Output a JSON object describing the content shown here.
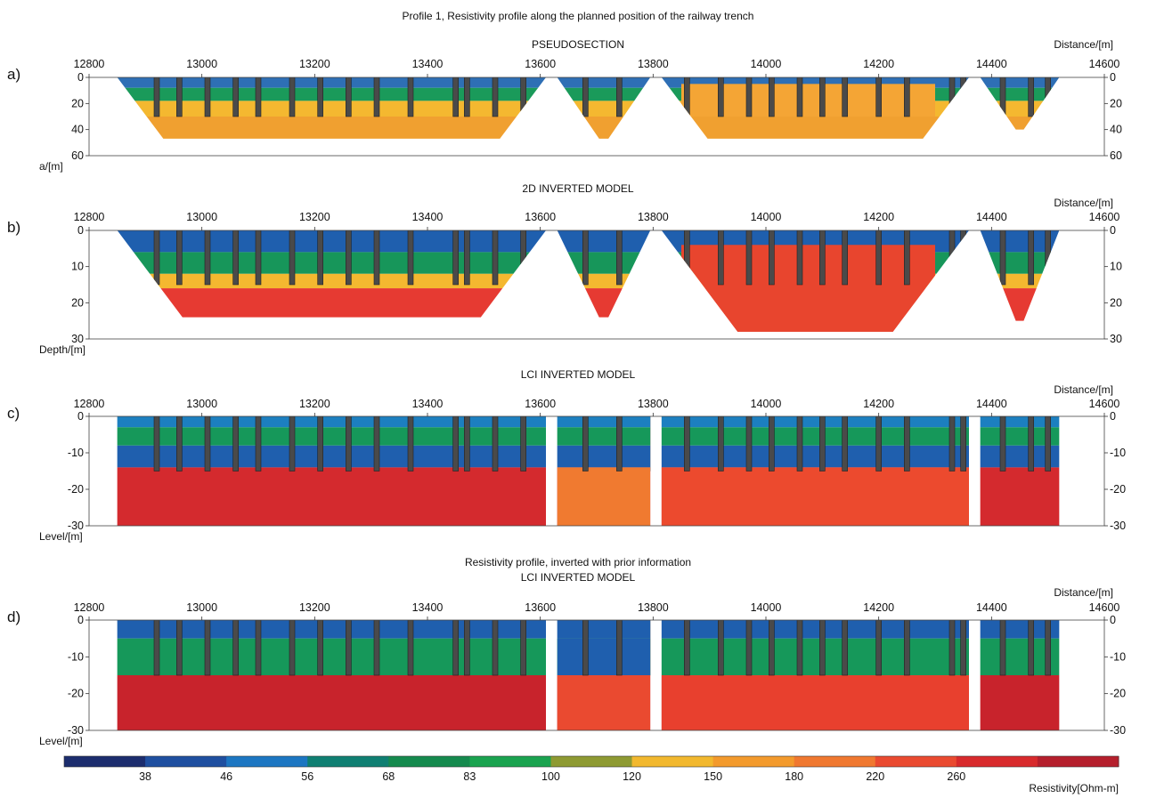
{
  "chart_data": {
    "type": "heatmap",
    "title": "Profile 1, Resistivity profile along the planned position of the railway trench",
    "distance_label": "Distance/[m]",
    "x_range": [
      12800,
      14600
    ],
    "x_ticks": [
      12800,
      13000,
      13200,
      13400,
      13600,
      13800,
      14000,
      14200,
      14400,
      14600
    ],
    "panels": [
      {
        "letter": "a)",
        "title": "PSEUDOSECTION",
        "title2": "",
        "ylabel": "a/[m]",
        "y_range": [
          0,
          60
        ],
        "y_ticks": [
          0,
          20,
          40,
          60
        ],
        "shape": "pseudo",
        "segments": [
          {
            "x0": 12850,
            "x1": 13610,
            "bottom": 47
          },
          {
            "x0": 13630,
            "x1": 13795,
            "bottom": 47
          },
          {
            "x0": 13815,
            "x1": 14360,
            "bottom": 47
          },
          {
            "x0": 14380,
            "x1": 14520,
            "bottom": 40
          }
        ],
        "bands": [
          {
            "x0": 12800,
            "x1": 14600,
            "top": 0,
            "bottom": 8,
            "color": "#2e6fb5"
          },
          {
            "x0": 12800,
            "x1": 14600,
            "top": 8,
            "bottom": 18,
            "color": "#1a9a5a"
          },
          {
            "x0": 12800,
            "x1": 14600,
            "top": 18,
            "bottom": 30,
            "color": "#f4b830"
          },
          {
            "x0": 12800,
            "x1": 14600,
            "top": 30,
            "bottom": 60,
            "color": "#f0a030"
          },
          {
            "x0": 13850,
            "x1": 14300,
            "top": 5,
            "bottom": 30,
            "color": "#f4a535"
          }
        ]
      },
      {
        "letter": "b)",
        "title": "2D INVERTED MODEL",
        "title2": "",
        "ylabel": "Depth/[m]",
        "y_range": [
          0,
          30
        ],
        "y_ticks": [
          0,
          10,
          20,
          30
        ],
        "shape": "pseudo",
        "segments": [
          {
            "x0": 12850,
            "x1": 13610,
            "bottom": 24
          },
          {
            "x0": 13630,
            "x1": 13795,
            "bottom": 24
          },
          {
            "x0": 13815,
            "x1": 14360,
            "bottom": 28
          },
          {
            "x0": 14380,
            "x1": 14520,
            "bottom": 25
          }
        ],
        "bands": [
          {
            "x0": 12800,
            "x1": 14600,
            "top": 0,
            "bottom": 6,
            "color": "#1f5fae"
          },
          {
            "x0": 12800,
            "x1": 14600,
            "top": 6,
            "bottom": 12,
            "color": "#17965a"
          },
          {
            "x0": 12800,
            "x1": 14600,
            "top": 12,
            "bottom": 16,
            "color": "#f4b830"
          },
          {
            "x0": 12800,
            "x1": 14600,
            "top": 16,
            "bottom": 30,
            "color": "#e63a32"
          },
          {
            "x0": 13850,
            "x1": 14300,
            "top": 4,
            "bottom": 30,
            "color": "#e8452e"
          }
        ]
      },
      {
        "letter": "c)",
        "title": "LCI INVERTED MODEL",
        "title2": "",
        "ylabel": "Level/[m]",
        "y_range": [
          0,
          -30
        ],
        "y_ticks": [
          0,
          -10,
          -20,
          -30
        ],
        "shape": "rect",
        "segments": [
          {
            "x0": 12850,
            "x1": 13610,
            "bottom": -30
          },
          {
            "x0": 13630,
            "x1": 13795,
            "bottom": -30
          },
          {
            "x0": 13815,
            "x1": 14360,
            "bottom": -30
          },
          {
            "x0": 14380,
            "x1": 14520,
            "bottom": -30
          }
        ],
        "bands": [
          {
            "x0": 12800,
            "x1": 14600,
            "top": 0,
            "bottom": -3,
            "color": "#1c7fc0"
          },
          {
            "x0": 12800,
            "x1": 14600,
            "top": -3,
            "bottom": -8,
            "color": "#16985a"
          },
          {
            "x0": 12800,
            "x1": 14600,
            "top": -8,
            "bottom": -14,
            "color": "#1f5fae"
          },
          {
            "x0": 12800,
            "x1": 14600,
            "top": -14,
            "bottom": -30,
            "color": "#d42a2e"
          },
          {
            "x0": 13630,
            "x1": 13795,
            "top": -14,
            "bottom": -30,
            "color": "#f07a30"
          },
          {
            "x0": 13815,
            "x1": 14360,
            "top": -14,
            "bottom": -30,
            "color": "#ec4a2e"
          }
        ]
      },
      {
        "letter": "d)",
        "title": "LCI INVERTED MODEL",
        "title2": "Resistivity profile, inverted with prior information",
        "ylabel": "Level/[m]",
        "y_range": [
          0,
          -30
        ],
        "y_ticks": [
          0,
          -10,
          -20,
          -30
        ],
        "shape": "rect",
        "segments": [
          {
            "x0": 12850,
            "x1": 13610,
            "bottom": -30
          },
          {
            "x0": 13630,
            "x1": 13795,
            "bottom": -30
          },
          {
            "x0": 13815,
            "x1": 14360,
            "bottom": -30
          },
          {
            "x0": 14380,
            "x1": 14520,
            "bottom": -30
          }
        ],
        "bands": [
          {
            "x0": 12800,
            "x1": 14600,
            "top": 0,
            "bottom": -5,
            "color": "#1f5fae"
          },
          {
            "x0": 12800,
            "x1": 14600,
            "top": -5,
            "bottom": -15,
            "color": "#16985a"
          },
          {
            "x0": 12800,
            "x1": 14600,
            "top": -15,
            "bottom": -30,
            "color": "#c8232c"
          },
          {
            "x0": 13630,
            "x1": 13795,
            "top": -5,
            "bottom": -15,
            "color": "#1f5fae"
          },
          {
            "x0": 13630,
            "x1": 13795,
            "top": -15,
            "bottom": -30,
            "color": "#ea4a30"
          },
          {
            "x0": 13815,
            "x1": 14360,
            "top": -15,
            "bottom": -30,
            "color": "#e8402e"
          }
        ]
      }
    ],
    "boreholes": [
      12920,
      12960,
      13010,
      13060,
      13100,
      13160,
      13210,
      13260,
      13310,
      13370,
      13450,
      13470,
      13520,
      13570,
      13680,
      13740,
      13800,
      13860,
      13920,
      13970,
      14010,
      14060,
      14100,
      14140,
      14200,
      14250,
      14330,
      14350,
      14420,
      14470,
      14500
    ],
    "colorbar": {
      "label": "Resistivity[Ohm-m]",
      "colors": [
        "#1c2d6e",
        "#1f4fa0",
        "#1c76c2",
        "#0f7f72",
        "#158a4e",
        "#1aa34f",
        "#8e9a32",
        "#f2b82e",
        "#f39a2c",
        "#f07830",
        "#ea4a30",
        "#d82a2c",
        "#b51f2c"
      ],
      "tick_labels": [
        "38",
        "46",
        "56",
        "68",
        "83",
        "100",
        "120",
        "150",
        "180",
        "220",
        "260"
      ]
    }
  }
}
